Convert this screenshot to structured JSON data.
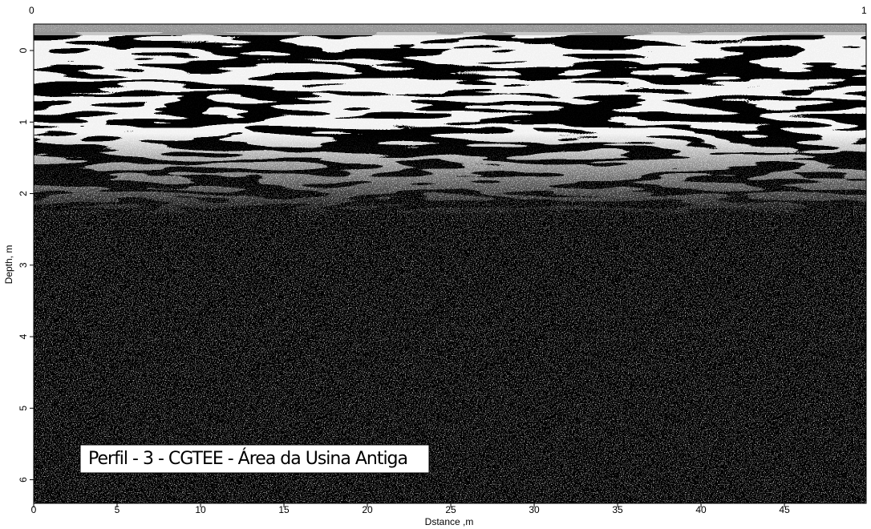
{
  "chart_data": {
    "type": "radargram",
    "top_left_label": "0",
    "top_right_label": "1",
    "annotation": "Perfil - 3 - CGTEE - Área da Usina Antiga",
    "x_label": "Dstance ,m",
    "y_label": "Depth, m",
    "xlim": [
      0,
      49.9
    ],
    "xticks": [
      0,
      5,
      10,
      15,
      20,
      25,
      30,
      35,
      40,
      45
    ],
    "ylim": [
      -0.37,
      6.33
    ],
    "yticks": [
      0,
      1,
      2,
      3,
      4,
      5,
      6
    ],
    "y_inverted": true
  }
}
